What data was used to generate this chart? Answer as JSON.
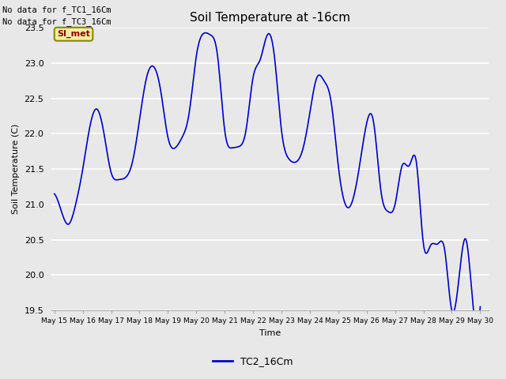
{
  "title": "Soil Temperature at -16cm",
  "ylabel": "Soil Temperature (C)",
  "xlabel": "Time",
  "legend_label": "TC2_16Cm",
  "line_color": "#0000cc",
  "background_color": "#e8e8e8",
  "plot_bg_color": "#e8e8e8",
  "ylim": [
    19.5,
    23.5
  ],
  "note1": "No data for f_TC1_16Cm",
  "note2": "No data for f_TC3_16Cm",
  "legend_box_label": "SI_met",
  "x_tick_labels": [
    "May 15",
    "May 16",
    "May 17",
    "May 18",
    "May 19",
    "May 20",
    "May 21",
    "May 22",
    "May 23",
    "May 24",
    "May 25",
    "May 26",
    "May 27",
    "May 28",
    "May 29",
    "May 30"
  ],
  "time_data": [
    0.0,
    0.25,
    0.5,
    0.75,
    1.0,
    1.25,
    1.5,
    1.75,
    2.0,
    2.25,
    2.5,
    2.75,
    3.0,
    3.25,
    3.5,
    3.75,
    4.0,
    4.25,
    4.5,
    4.75,
    5.0,
    5.25,
    5.5,
    5.75,
    6.0,
    6.25,
    6.5,
    6.75,
    7.0,
    7.25,
    7.5,
    7.75,
    8.0,
    8.25,
    8.5,
    8.75,
    9.0,
    9.25,
    9.5,
    9.75,
    10.0,
    10.25,
    10.5,
    10.75,
    11.0,
    11.25,
    11.5,
    11.75,
    12.0,
    12.25,
    12.5,
    12.75,
    13.0,
    13.25,
    13.5,
    13.75,
    14.0,
    14.25,
    14.5,
    14.75,
    15.0
  ],
  "temp_data": [
    21.15,
    20.9,
    20.72,
    21.0,
    21.5,
    22.1,
    22.35,
    22.0,
    21.45,
    21.35,
    21.38,
    21.6,
    22.2,
    22.8,
    22.95,
    22.6,
    21.95,
    21.8,
    21.95,
    22.3,
    23.1,
    23.42,
    23.4,
    23.1,
    22.05,
    21.8,
    21.82,
    22.05,
    22.8,
    23.05,
    23.4,
    23.1,
    22.05,
    21.65,
    21.6,
    21.78,
    22.3,
    22.8,
    22.75,
    22.45,
    21.55,
    21.0,
    21.05,
    21.55,
    22.15,
    22.15,
    21.2,
    20.9,
    21.0,
    21.55,
    21.55,
    21.6,
    20.44,
    20.42,
    20.44,
    20.35,
    19.5,
    19.95,
    20.5,
    19.55,
    19.55
  ]
}
